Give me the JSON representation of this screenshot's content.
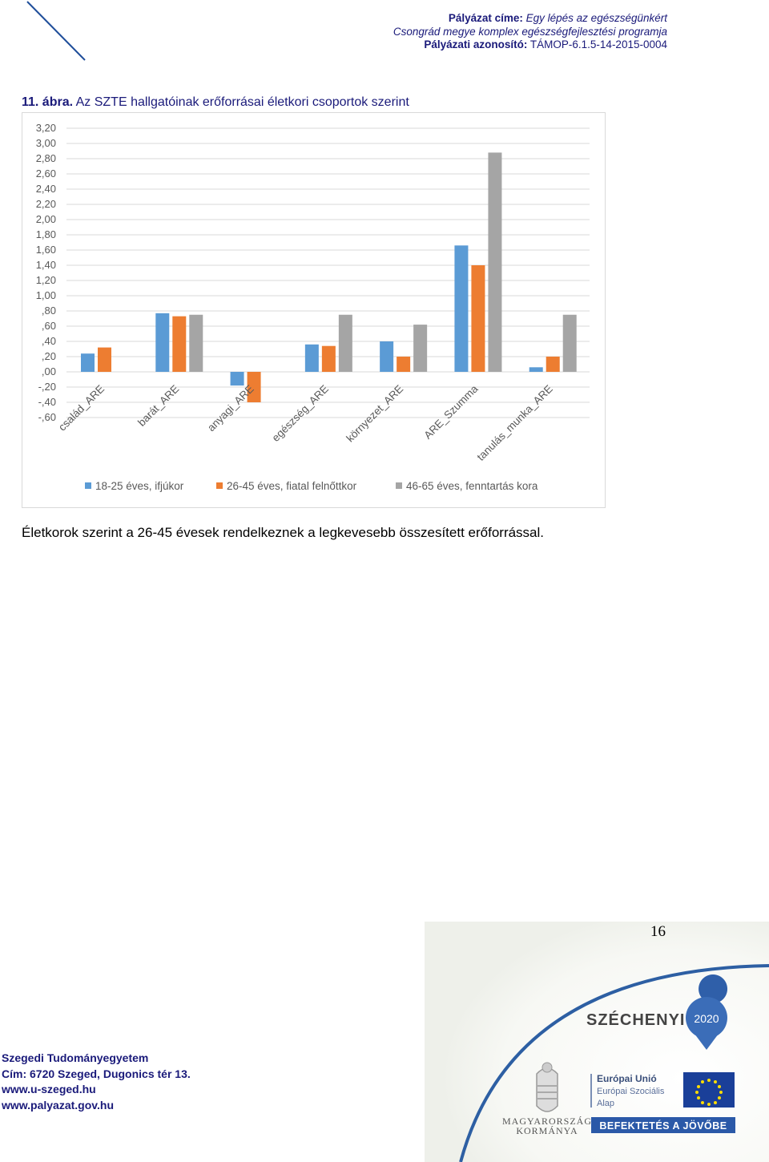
{
  "header": {
    "title_label": "Pályázat címe:",
    "title_value": "Egy lépés az egészségünkért",
    "subtitle": "Csongrád megye komplex egészségfejlesztési programja",
    "id_label": "Pályázati azonosító:",
    "id_value": "TÁMOP-6.1.5-14-2015-0004"
  },
  "figure": {
    "number": "11. ábra.",
    "title": "Az SZTE hallgatóinak erőforrásai életkori csoportok szerint"
  },
  "chart_data": {
    "type": "bar",
    "categories": [
      "család_ARE",
      "barát_ARE",
      "anyagi_ARE",
      "egészség_ARE",
      "környezet_ARE",
      "ARE_Szumma",
      "tanulás_munka_ARE"
    ],
    "series": [
      {
        "name": "18-25 éves, ifjúkor",
        "color": "#5b9bd5",
        "values": [
          0.24,
          0.77,
          -0.18,
          0.36,
          0.4,
          1.66,
          0.06
        ]
      },
      {
        "name": "26-45 éves, fiatal felnőttkor",
        "color": "#ed7d31",
        "values": [
          0.32,
          0.73,
          -0.4,
          0.34,
          0.2,
          1.4,
          0.2
        ]
      },
      {
        "name": "46-65 éves, fenntartás kora",
        "color": "#a5a5a5",
        "values": [
          null,
          0.75,
          null,
          0.75,
          0.62,
          2.88,
          0.75
        ]
      }
    ],
    "ylim": [
      -0.6,
      3.2
    ],
    "yticks": [
      "3,20",
      "3,00",
      "2,80",
      "2,60",
      "2,40",
      "2,20",
      "2,00",
      "1,80",
      "1,60",
      "1,40",
      "1,20",
      "1,00",
      ",80",
      ",60",
      ",40",
      ",20",
      ",00",
      "-,20",
      "-,40",
      "-,60"
    ],
    "grid": true,
    "legend_position": "bottom"
  },
  "body_text": "Életkorok szerint a 26-45 évesek rendelkeznek a legkevesebb összesített erőforrással.",
  "page_number": "16",
  "footer": {
    "address": [
      "Szegedi Tudományegyetem",
      "Cím: 6720 Szeged, Dugonics tér 13.",
      "www.u-szeged.hu",
      "www.palyazat.gov.hu"
    ],
    "logo_szechenyi": "SZÉCHENYI",
    "logo_2020": "2020",
    "logo_gov": [
      "MAGYARORSZÁG",
      "KORMÁNYA"
    ],
    "eu_text": [
      "Európai Unió",
      "Európai Szociális",
      "Alap"
    ],
    "invest_banner": "BEFEKTETÉS A JÖVŐBE"
  }
}
